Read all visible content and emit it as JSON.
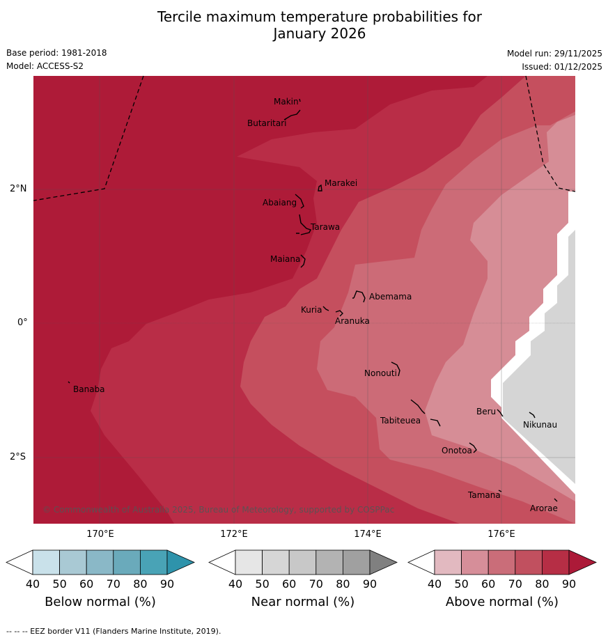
{
  "title_line1": "Tercile maximum temperature probabilities for",
  "title_line2": "January 2026",
  "base_period": "Base period: 1981-2018",
  "model": "Model: ACCESS-S2",
  "model_run": "Model run: 29/11/2025",
  "issued": "Issued: 01/12/2025",
  "axes": {
    "lon_labels": [
      "170°E",
      "172°E",
      "174°E",
      "176°E"
    ],
    "lat_labels": [
      "2°N",
      "0°",
      "2°S"
    ]
  },
  "places": [
    {
      "name": "Makin"
    },
    {
      "name": "Butaritari"
    },
    {
      "name": "Marakei"
    },
    {
      "name": "Abaiang"
    },
    {
      "name": "Tarawa"
    },
    {
      "name": "Maiana"
    },
    {
      "name": "Abemama"
    },
    {
      "name": "Kuria"
    },
    {
      "name": "Aranuka"
    },
    {
      "name": "Banaba"
    },
    {
      "name": "Nonouti"
    },
    {
      "name": "Beru"
    },
    {
      "name": "Nikunau"
    },
    {
      "name": "Tabiteuea"
    },
    {
      "name": "Onotoa"
    },
    {
      "name": "Tamana"
    },
    {
      "name": "Arorae"
    }
  ],
  "copyright": "© Commonwealth of Australia 2025, Bureau of Meteorology, supported by COSPPac",
  "colorbars": [
    {
      "label": "Below normal (%)",
      "ticks": [
        "40",
        "50",
        "60",
        "70",
        "80",
        "90"
      ],
      "colors": [
        "#ffffff",
        "#c9e1ea",
        "#a9c9d4",
        "#8ab8c7",
        "#6aaabb",
        "#49a3b6",
        "#2e93ab"
      ]
    },
    {
      "label": "Near normal (%)",
      "ticks": [
        "40",
        "50",
        "60",
        "70",
        "80",
        "90"
      ],
      "colors": [
        "#ffffff",
        "#e6e6e6",
        "#d6d6d6",
        "#c8c8c8",
        "#b3b3b3",
        "#a0a0a0",
        "#808080"
      ]
    },
    {
      "label": "Above normal (%)",
      "ticks": [
        "40",
        "50",
        "60",
        "70",
        "80",
        "90"
      ],
      "colors": [
        "#ffffff",
        "#e2b9c0",
        "#d68e99",
        "#ca6d79",
        "#c1505f",
        "#b62e45",
        "#ac1a38"
      ]
    }
  ],
  "footer": "--  --  -- EEZ border V11 (Flanders Marine Institute, 2019)."
}
